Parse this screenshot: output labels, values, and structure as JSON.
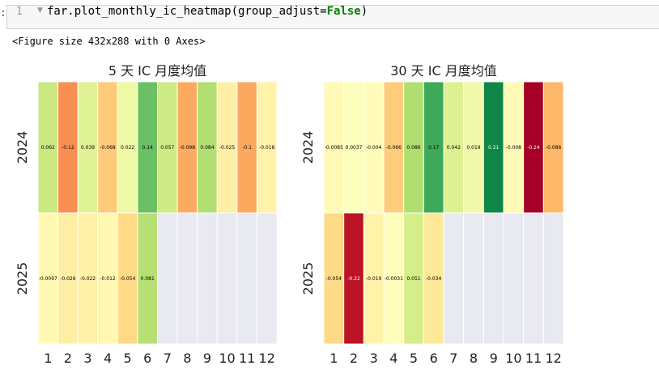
{
  "notebook": {
    "line_number": "1",
    "code_call": "far.plot_monthly_ic_heatmap(group_adjust=",
    "code_keyword": "False",
    "code_close": ")",
    "output_text": "<Figure size 432x288 with 0 Axes>"
  },
  "colors": {
    "empty_cell": "#e9e9f1",
    "colormap": "RdYlGn"
  },
  "chart_data": [
    {
      "type": "heatmap",
      "title": "5 天 IC 月度均值",
      "x_categories": [
        "1",
        "2",
        "3",
        "4",
        "5",
        "6",
        "7",
        "8",
        "9",
        "10",
        "11",
        "12"
      ],
      "y_categories": [
        "2024",
        "2025"
      ],
      "color_range": [
        -0.24,
        0.24
      ],
      "values": [
        [
          0.062,
          -0.12,
          0.039,
          -0.068,
          0.022,
          0.14,
          0.057,
          -0.098,
          0.084,
          -0.025,
          -0.1,
          -0.018
        ],
        [
          -0.0097,
          -0.026,
          -0.022,
          -0.012,
          -0.054,
          0.081,
          null,
          null,
          null,
          null,
          null,
          null
        ]
      ],
      "labels": [
        [
          "0.062",
          "-0.12",
          "0.039",
          "-0.068",
          "0.022",
          "0.14",
          "0.057",
          "-0.098",
          "0.084",
          "-0.025",
          "-0.1",
          "-0.018"
        ],
        [
          "-0.0097",
          "-0.026",
          "-0.022",
          "-0.012",
          "-0.054",
          "0.081",
          "",
          "",
          "",
          "",
          "",
          ""
        ]
      ]
    },
    {
      "type": "heatmap",
      "title": "30 天 IC 月度均值",
      "x_categories": [
        "1",
        "2",
        "3",
        "4",
        "5",
        "6",
        "7",
        "8",
        "9",
        "10",
        "11",
        "12"
      ],
      "y_categories": [
        "2024",
        "2025"
      ],
      "color_range": [
        -0.24,
        0.24
      ],
      "values": [
        [
          -0.0085,
          0.0037,
          -0.004,
          -0.066,
          0.086,
          0.17,
          0.042,
          0.019,
          0.21,
          -0.008,
          -0.24,
          -0.086
        ],
        [
          -0.054,
          -0.22,
          -0.019,
          -0.0031,
          0.051,
          -0.034,
          null,
          null,
          null,
          null,
          null,
          null
        ]
      ],
      "labels": [
        [
          "-0.0085",
          "0.0037",
          "-0.004",
          "-0.066",
          "0.086",
          "0.17",
          "0.042",
          "0.019",
          "0.21",
          "-0.008",
          "-0.24",
          "-0.086"
        ],
        [
          "-0.054",
          "-0.22",
          "-0.019",
          "-0.0031",
          "0.051",
          "-0.034",
          "",
          "",
          "",
          "",
          "",
          ""
        ]
      ]
    }
  ]
}
